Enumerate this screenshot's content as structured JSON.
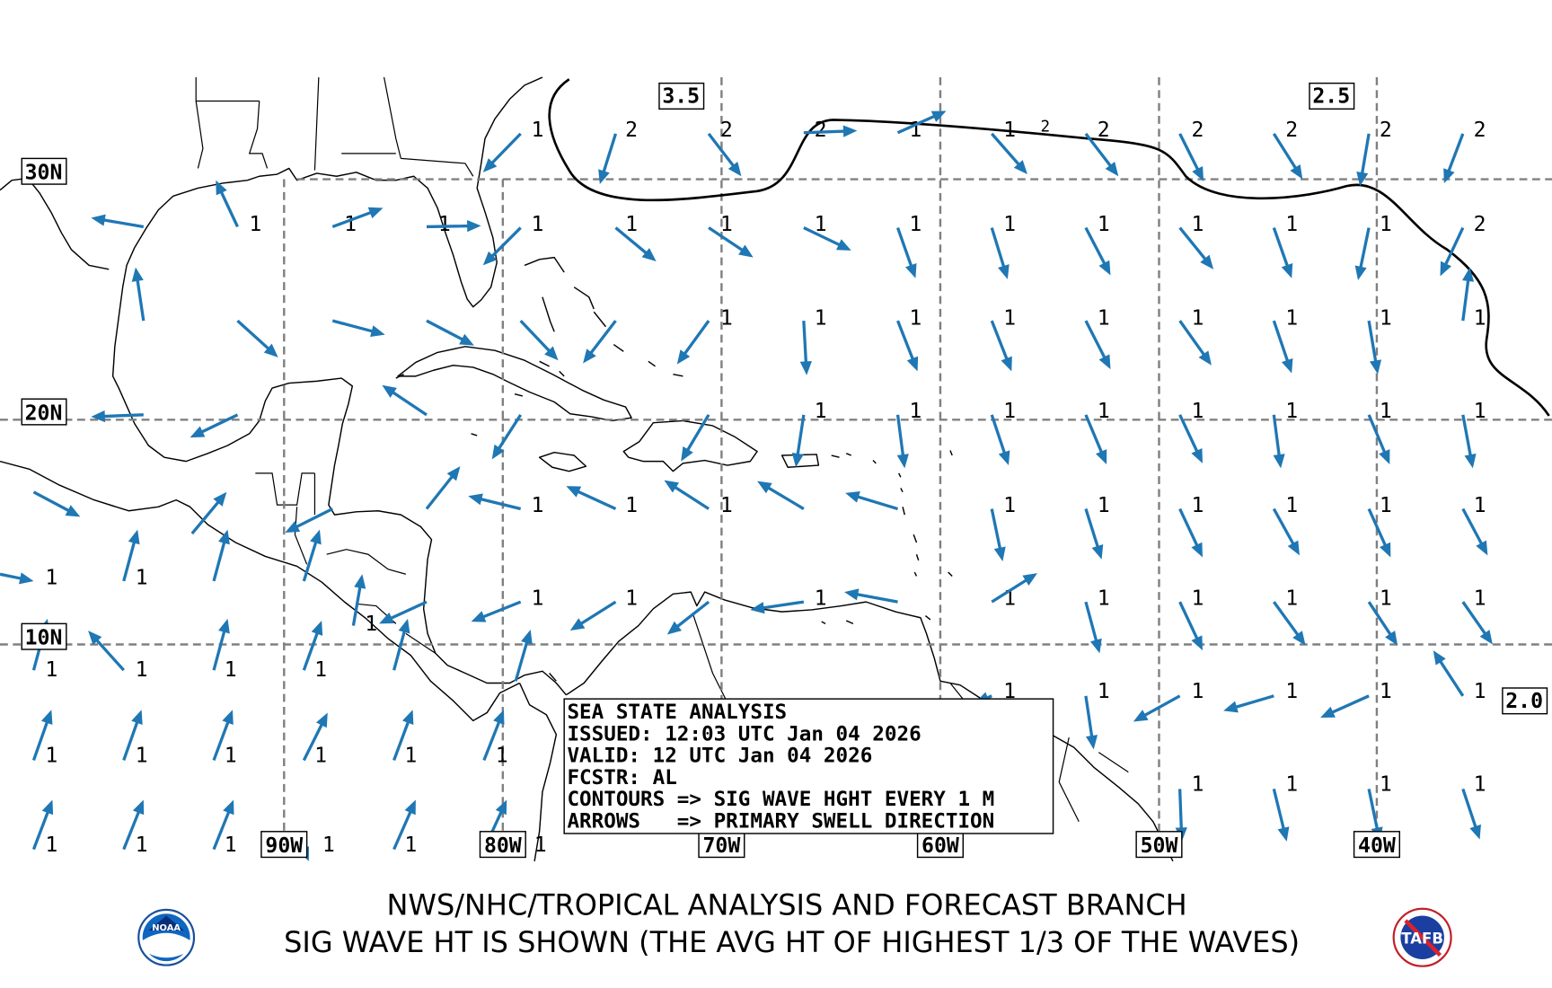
{
  "map": {
    "latitude_labels": [
      "30N",
      "20N",
      "10N"
    ],
    "longitude_labels": [
      "90W",
      "80W",
      "70W",
      "60W",
      "50W",
      "40W"
    ],
    "contour_labels": [
      "3.5",
      "2.5",
      "2.0",
      "2"
    ],
    "arrow_color": "#1f77b4",
    "grid_color": "#808080",
    "wave_height_rows": [
      [
        "1",
        "2",
        "2",
        "2",
        "1",
        "1",
        "2",
        "2",
        "2",
        "2",
        "2"
      ],
      [
        "1",
        "1",
        "1",
        "1",
        "1",
        "1",
        "1",
        "1",
        "1",
        "1",
        "1",
        "1",
        "1",
        "2"
      ],
      [
        "1",
        "1",
        "1",
        "1",
        "1",
        "1",
        "1",
        "1",
        "1"
      ],
      [
        "1",
        "1",
        "1",
        "1",
        "1",
        "1",
        "1",
        "1"
      ],
      [
        "1",
        "1",
        "1",
        "1",
        "1",
        "1",
        "1",
        "1",
        "1"
      ],
      [
        "1",
        "1"
      ],
      [
        "1",
        "1",
        "1",
        "1",
        "1",
        "1",
        "1",
        "1",
        "1",
        "1"
      ],
      [
        "1",
        "1",
        "1",
        "1"
      ],
      [
        "1",
        "1",
        "1",
        "1",
        "1",
        "1"
      ],
      [
        "1",
        "1",
        "1",
        "1",
        "1",
        "1"
      ],
      [
        "1",
        "1",
        "1",
        "1"
      ],
      [
        "1",
        "1",
        "1",
        "1",
        "1",
        "1"
      ]
    ]
  },
  "info_box": {
    "line1": "SEA STATE ANALYSIS",
    "line2": "ISSUED: 12:03 UTC Jan 04 2026",
    "line3": "VALID: 12 UTC Jan 04 2026",
    "line4": "FCSTR: AL",
    "line5": "CONTOURS => SIG WAVE HGHT EVERY 1 M",
    "line6": "ARROWS   => PRIMARY SWELL DIRECTION"
  },
  "footer": {
    "title1": "NWS/NHC/TROPICAL ANALYSIS AND FORECAST BRANCH",
    "title2": "SIG WAVE HT IS SHOWN (THE AVG HT OF HIGHEST 1/3 OF THE WAVES)",
    "left_logo": "NOAA",
    "right_logo": "TAFB"
  }
}
